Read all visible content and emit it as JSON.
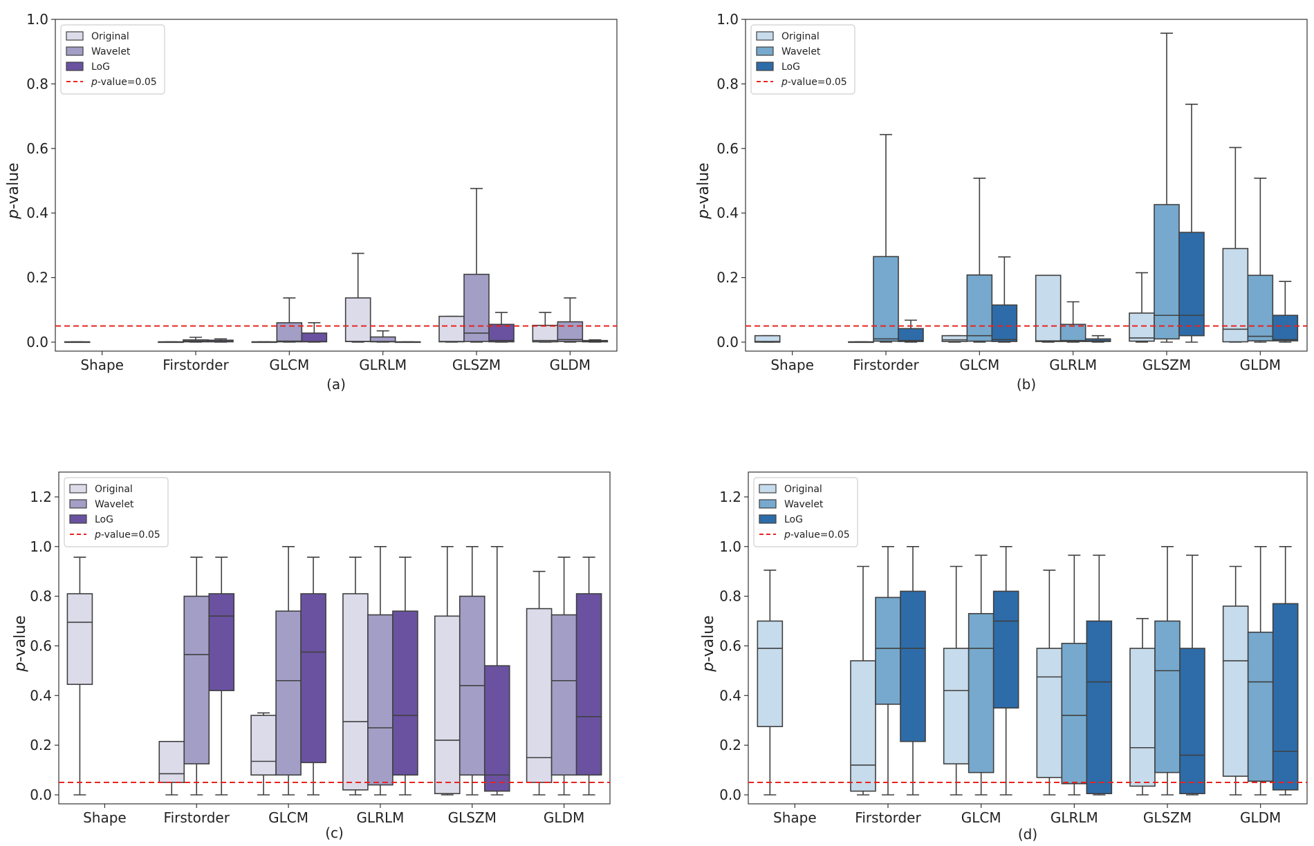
{
  "legend_labels": {
    "original": "Original",
    "wavelet": "Wavelet",
    "log": "LoG",
    "threshold_italic": "p",
    "threshold_rest": "-value=0.05"
  },
  "ylabel_italic": "p",
  "ylabel_rest": "-value",
  "categories": [
    "Shape",
    "Firstorder",
    "GLCM",
    "GLRLM",
    "GLSZM",
    "GLDM"
  ],
  "series_names": [
    "Original",
    "Wavelet",
    "LoG"
  ],
  "threshold": 0.05,
  "colors": {
    "purple": [
      "#dcdbea",
      "#a29ec6",
      "#6a52a1"
    ],
    "blue": [
      "#c6dbeb",
      "#76a9cd",
      "#2d6ca9"
    ],
    "threshold_line": "#e8231f",
    "box_edge": "#3f3f3f"
  },
  "chart_data": [
    {
      "id": "a",
      "caption": "(a)",
      "type": "box",
      "palette": "purple",
      "ylim": [
        0,
        1.0
      ],
      "yticks": [
        "0.0",
        "0.2",
        "0.4",
        "0.6",
        "0.8",
        "1.0"
      ],
      "series": [
        {
          "name": "Original",
          "boxes": [
            {
              "q1": 0,
              "med": 0,
              "q3": 0.001,
              "lw": 0,
              "uw": 0.001
            },
            {
              "q1": 0,
              "med": 0,
              "q3": 0.001,
              "lw": 0,
              "uw": 0.001
            },
            {
              "q1": 0,
              "med": 0,
              "q3": 0.001,
              "lw": 0,
              "uw": 0.001
            },
            {
              "q1": 0.002,
              "med": 0.002,
              "q3": 0.137,
              "lw": 0,
              "uw": 0.275
            },
            {
              "q1": 0.001,
              "med": 0.002,
              "q3": 0.08,
              "lw": 0,
              "uw": 0.08
            },
            {
              "q1": 0.001,
              "med": 0.005,
              "q3": 0.052,
              "lw": 0,
              "uw": 0.092
            }
          ]
        },
        {
          "name": "Wavelet",
          "boxes": [
            null,
            {
              "q1": 0.001,
              "med": 0.003,
              "q3": 0.007,
              "lw": 0,
              "uw": 0.015
            },
            {
              "q1": 0.001,
              "med": 0.003,
              "q3": 0.06,
              "lw": 0,
              "uw": 0.137
            },
            {
              "q1": 0.001,
              "med": 0.002,
              "q3": 0.016,
              "lw": 0,
              "uw": 0.035
            },
            {
              "q1": 0.002,
              "med": 0.028,
              "q3": 0.21,
              "lw": 0,
              "uw": 0.476
            },
            {
              "q1": 0.002,
              "med": 0.008,
              "q3": 0.063,
              "lw": 0,
              "uw": 0.137
            }
          ]
        },
        {
          "name": "LoG",
          "boxes": [
            null,
            {
              "q1": 0.001,
              "med": 0.002,
              "q3": 0.006,
              "lw": 0,
              "uw": 0.01
            },
            {
              "q1": 0.001,
              "med": 0.002,
              "q3": 0.028,
              "lw": 0,
              "uw": 0.06
            },
            {
              "q1": 0,
              "med": 0,
              "q3": 0.001,
              "lw": 0,
              "uw": 0.001
            },
            {
              "q1": 0.001,
              "med": 0.005,
              "q3": 0.055,
              "lw": 0,
              "uw": 0.092
            },
            {
              "q1": 0.001,
              "med": 0.002,
              "q3": 0.005,
              "lw": 0,
              "uw": 0.007
            }
          ]
        }
      ]
    },
    {
      "id": "b",
      "caption": "(b)",
      "type": "box",
      "palette": "blue",
      "ylim": [
        0,
        1.0
      ],
      "yticks": [
        "0.0",
        "0.2",
        "0.4",
        "0.6",
        "0.8",
        "1.0"
      ],
      "series": [
        {
          "name": "Original",
          "boxes": [
            {
              "q1": 0,
              "med": 0.002,
              "q3": 0.02,
              "lw": 0,
              "uw": 0.02
            },
            {
              "q1": 0,
              "med": 0,
              "q3": 0.001,
              "lw": 0,
              "uw": 0.001
            },
            {
              "q1": 0.002,
              "med": 0.007,
              "q3": 0.02,
              "lw": 0,
              "uw": 0.02
            },
            {
              "q1": 0.002,
              "med": 0.004,
              "q3": 0.207,
              "lw": 0,
              "uw": 0.207
            },
            {
              "q1": 0.003,
              "med": 0.013,
              "q3": 0.09,
              "lw": 0,
              "uw": 0.215
            },
            {
              "q1": 0.001,
              "med": 0.04,
              "q3": 0.29,
              "lw": 0,
              "uw": 0.603
            }
          ]
        },
        {
          "name": "Wavelet",
          "boxes": [
            null,
            {
              "q1": 0.003,
              "med": 0.01,
              "q3": 0.265,
              "lw": 0,
              "uw": 0.643
            },
            {
              "q1": 0.003,
              "med": 0.02,
              "q3": 0.208,
              "lw": 0,
              "uw": 0.508
            },
            {
              "q1": 0.002,
              "med": 0.005,
              "q3": 0.055,
              "lw": 0,
              "uw": 0.125
            },
            {
              "q1": 0.01,
              "med": 0.083,
              "q3": 0.426,
              "lw": 0,
              "uw": 0.957
            },
            {
              "q1": 0.004,
              "med": 0.018,
              "q3": 0.207,
              "lw": 0,
              "uw": 0.508
            }
          ]
        },
        {
          "name": "LoG",
          "boxes": [
            null,
            {
              "q1": 0.002,
              "med": 0.005,
              "q3": 0.042,
              "lw": 0,
              "uw": 0.068
            },
            {
              "q1": 0.002,
              "med": 0.008,
              "q3": 0.115,
              "lw": 0,
              "uw": 0.264
            },
            {
              "q1": 0.002,
              "med": 0.004,
              "q3": 0.01,
              "lw": 0,
              "uw": 0.02
            },
            {
              "q1": 0.02,
              "med": 0.083,
              "q3": 0.34,
              "lw": 0,
              "uw": 0.737
            },
            {
              "q1": 0.004,
              "med": 0.008,
              "q3": 0.083,
              "lw": 0,
              "uw": 0.188
            }
          ]
        }
      ]
    },
    {
      "id": "c",
      "caption": "(c)",
      "type": "box",
      "palette": "purple",
      "ylim": [
        0,
        1.3
      ],
      "yticks": [
        "0.0",
        "0.2",
        "0.4",
        "0.6",
        "0.8",
        "1.0",
        "1.2"
      ],
      "series": [
        {
          "name": "Original",
          "boxes": [
            {
              "q1": 0.445,
              "med": 0.695,
              "q3": 0.81,
              "lw": 0,
              "uw": 0.957
            },
            {
              "q1": 0.05,
              "med": 0.085,
              "q3": 0.215,
              "lw": 0,
              "uw": 0.215
            },
            {
              "q1": 0.08,
              "med": 0.135,
              "q3": 0.32,
              "lw": 0,
              "uw": 0.33
            },
            {
              "q1": 0.02,
              "med": 0.295,
              "q3": 0.81,
              "lw": 0,
              "uw": 0.957
            },
            {
              "q1": 0.005,
              "med": 0.22,
              "q3": 0.72,
              "lw": 0,
              "uw": 1.0
            },
            {
              "q1": 0.05,
              "med": 0.15,
              "q3": 0.75,
              "lw": 0,
              "uw": 0.9
            }
          ]
        },
        {
          "name": "Wavelet",
          "boxes": [
            null,
            {
              "q1": 0.125,
              "med": 0.565,
              "q3": 0.8,
              "lw": 0,
              "uw": 0.957
            },
            {
              "q1": 0.08,
              "med": 0.46,
              "q3": 0.74,
              "lw": 0,
              "uw": 1.0
            },
            {
              "q1": 0.04,
              "med": 0.27,
              "q3": 0.725,
              "lw": 0,
              "uw": 1.0
            },
            {
              "q1": 0.08,
              "med": 0.44,
              "q3": 0.8,
              "lw": 0,
              "uw": 1.0
            },
            {
              "q1": 0.08,
              "med": 0.46,
              "q3": 0.725,
              "lw": 0,
              "uw": 0.957
            }
          ]
        },
        {
          "name": "LoG",
          "boxes": [
            null,
            {
              "q1": 0.42,
              "med": 0.72,
              "q3": 0.81,
              "lw": 0,
              "uw": 0.957
            },
            {
              "q1": 0.13,
              "med": 0.575,
              "q3": 0.81,
              "lw": 0,
              "uw": 0.957
            },
            {
              "q1": 0.08,
              "med": 0.32,
              "q3": 0.74,
              "lw": 0,
              "uw": 0.957
            },
            {
              "q1": 0.015,
              "med": 0.08,
              "q3": 0.52,
              "lw": 0,
              "uw": 1.0
            },
            {
              "q1": 0.08,
              "med": 0.315,
              "q3": 0.81,
              "lw": 0,
              "uw": 0.957
            }
          ]
        }
      ]
    },
    {
      "id": "d",
      "caption": "(d)",
      "type": "box",
      "palette": "blue",
      "ylim": [
        0,
        1.3
      ],
      "yticks": [
        "0.0",
        "0.2",
        "0.4",
        "0.6",
        "0.8",
        "1.0",
        "1.2"
      ],
      "series": [
        {
          "name": "Original",
          "boxes": [
            {
              "q1": 0.275,
              "med": 0.59,
              "q3": 0.7,
              "lw": 0,
              "uw": 0.905
            },
            {
              "q1": 0.015,
              "med": 0.12,
              "q3": 0.54,
              "lw": 0,
              "uw": 0.92
            },
            {
              "q1": 0.125,
              "med": 0.42,
              "q3": 0.59,
              "lw": 0,
              "uw": 0.92
            },
            {
              "q1": 0.07,
              "med": 0.475,
              "q3": 0.59,
              "lw": 0,
              "uw": 0.905
            },
            {
              "q1": 0.035,
              "med": 0.19,
              "q3": 0.59,
              "lw": 0,
              "uw": 0.71
            },
            {
              "q1": 0.075,
              "med": 0.54,
              "q3": 0.76,
              "lw": 0,
              "uw": 0.92
            }
          ]
        },
        {
          "name": "Wavelet",
          "boxes": [
            null,
            {
              "q1": 0.365,
              "med": 0.59,
              "q3": 0.795,
              "lw": 0,
              "uw": 1.0
            },
            {
              "q1": 0.09,
              "med": 0.59,
              "q3": 0.73,
              "lw": 0,
              "uw": 0.965
            },
            {
              "q1": 0.045,
              "med": 0.32,
              "q3": 0.61,
              "lw": 0,
              "uw": 0.965
            },
            {
              "q1": 0.09,
              "med": 0.5,
              "q3": 0.7,
              "lw": 0,
              "uw": 1.0
            },
            {
              "q1": 0.055,
              "med": 0.455,
              "q3": 0.655,
              "lw": 0,
              "uw": 1.0
            }
          ]
        },
        {
          "name": "LoG",
          "boxes": [
            null,
            {
              "q1": 0.215,
              "med": 0.59,
              "q3": 0.82,
              "lw": 0,
              "uw": 1.0
            },
            {
              "q1": 0.35,
              "med": 0.7,
              "q3": 0.82,
              "lw": 0,
              "uw": 1.0
            },
            {
              "q1": 0.005,
              "med": 0.455,
              "q3": 0.7,
              "lw": 0,
              "uw": 0.965
            },
            {
              "q1": 0.005,
              "med": 0.16,
              "q3": 0.59,
              "lw": 0,
              "uw": 0.965
            },
            {
              "q1": 0.02,
              "med": 0.175,
              "q3": 0.77,
              "lw": 0,
              "uw": 1.0
            }
          ]
        }
      ]
    }
  ]
}
